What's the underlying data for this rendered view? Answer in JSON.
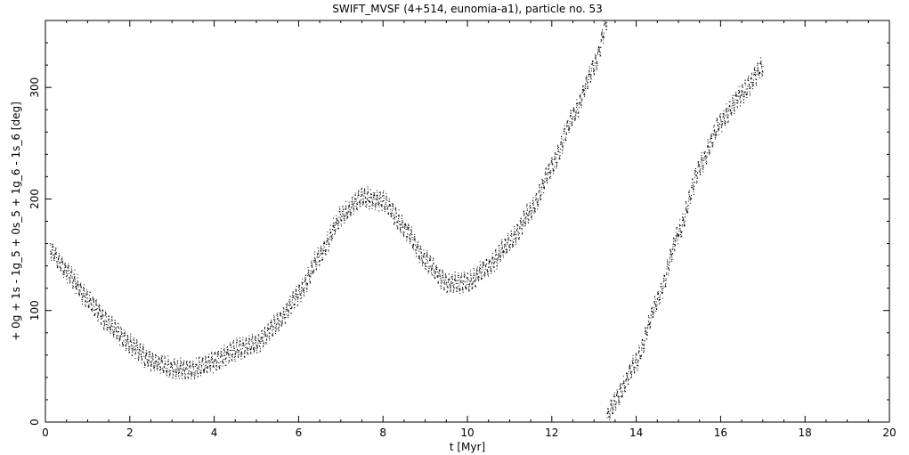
{
  "chart_data": {
    "type": "scatter",
    "title": "SWIFT_MVSF (4+514, eunomia-a1), particle no. 53",
    "xlabel": "t [Myr]",
    "ylabel": "+ 0g + 1s - 1g_5 + 0s_5 + 1g_6 - 1s_6 [deg]",
    "xlim": [
      0,
      20
    ],
    "ylim": [
      0,
      360
    ],
    "xticks": [
      "0",
      "2",
      "4",
      "6",
      "8",
      "10",
      "12",
      "14",
      "16",
      "18",
      "20"
    ],
    "yticks": [
      "0",
      "100",
      "200",
      "300"
    ],
    "grid": false,
    "point_color": "#000000",
    "series": [
      {
        "x": [
          0.1,
          0.5,
          1.0,
          1.5,
          2.0,
          2.5,
          3.0,
          3.5,
          4.0,
          4.5,
          5.0,
          5.5,
          6.0,
          6.5,
          7.0,
          7.5,
          8.0,
          8.5,
          9.0,
          9.5,
          10.0,
          10.5,
          11.0,
          11.5,
          12.0,
          12.5,
          13.0,
          13.3
        ],
        "y": [
          155,
          135,
          110,
          88,
          70,
          55,
          48,
          47,
          55,
          65,
          70,
          90,
          115,
          150,
          185,
          202,
          198,
          175,
          145,
          125,
          125,
          140,
          162,
          190,
          230,
          275,
          320,
          360
        ]
      },
      {
        "x": [
          13.3,
          13.5,
          14.0,
          14.5,
          15.0,
          15.5,
          16.0,
          16.5,
          17.0
        ],
        "y": [
          5,
          20,
          55,
          110,
          170,
          230,
          270,
          295,
          320
        ]
      }
    ]
  }
}
